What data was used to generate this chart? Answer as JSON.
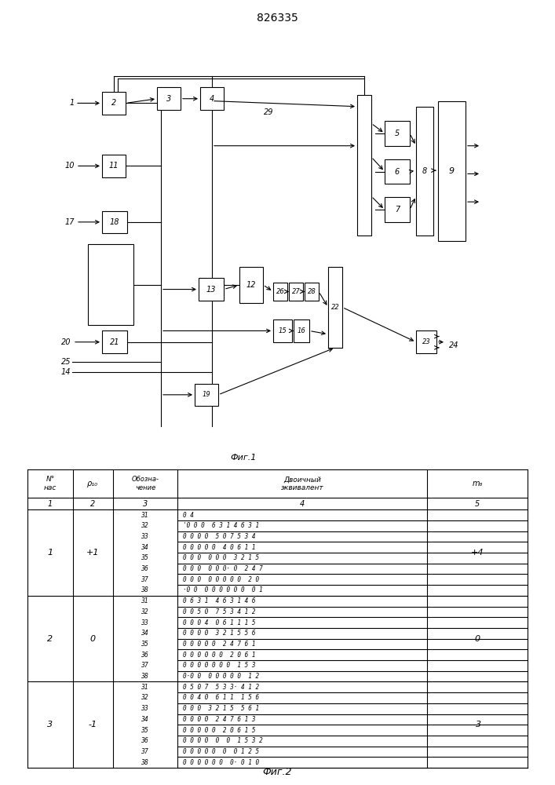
{
  "title": "826335",
  "fig1_label": "Фиг.1",
  "fig2_label": "Фиг.2",
  "sections": [
    {
      "nas": "1",
      "p10": "+1",
      "mb": "+4",
      "rows": [
        {
          "desig": "31",
          "equiv": "0 4"
        },
        {
          "desig": "32",
          "equiv": "'0 0 0  6 3 1 4 6 3 1"
        },
        {
          "desig": "33",
          "equiv": "0 0 0 0  5 0 7 5 3 4"
        },
        {
          "desig": "34",
          "equiv": "0 0 0 0 0  4 0 6 1 1"
        },
        {
          "desig": "35",
          "equiv": "0 0 0  0 0 0  3 2 1 5"
        },
        {
          "desig": "36",
          "equiv": "0 0 0  0 0 0· 0  2 4 7"
        },
        {
          "desig": "37",
          "equiv": "0 0 0  0 0 0 0 0  2 0"
        },
        {
          "desig": "38",
          "equiv": "·0 0  0 0 0 0 0 0  0 1"
        }
      ]
    },
    {
      "nas": "2",
      "p10": "0",
      "mb": "0",
      "rows": [
        {
          "desig": "31",
          "equiv": "0 6 3 1  4 6 3 1 4 6"
        },
        {
          "desig": "32",
          "equiv": "0 0 5 0  7 5 3 4 1 2"
        },
        {
          "desig": "33",
          "equiv": "0 0 0 4  0 6 1 1 1 5"
        },
        {
          "desig": "34",
          "equiv": "0 0 0 0  3 2 1 5 5 6"
        },
        {
          "desig": "35",
          "equiv": "0 0 0 0 0  2 4 7 6 1"
        },
        {
          "desig": "36",
          "equiv": "0 0 0 0 0 0  2 0 6 1"
        },
        {
          "desig": "37",
          "equiv": "0 0 0 0 0 0 0  1 5 3"
        },
        {
          "desig": "38",
          "equiv": "0·0 0  0 0 0 0 0  1 2"
        }
      ]
    },
    {
      "nas": "3",
      "p10": "-1",
      "mb": "-3",
      "rows": [
        {
          "desig": "31",
          "equiv": "0 5 0 7  5 3 3· 4 1 2"
        },
        {
          "desig": "32",
          "equiv": "0 0 4 0  6 1 1  1 5 6"
        },
        {
          "desig": "33",
          "equiv": "0 0 0  3 2 1 5  5 6 1"
        },
        {
          "desig": "34",
          "equiv": "0 0 0 0  2 4 7 6 1 3"
        },
        {
          "desig": "35",
          "equiv": "0 0 0 0 0  2 0 6 1 5"
        },
        {
          "desig": "36",
          "equiv": "0 0 0 0  0  0  1 5 3 2"
        },
        {
          "desig": "37",
          "equiv": "0 0 0 0 0  0  0 1 2 5"
        },
        {
          "desig": "38",
          "equiv": "0 0 0 0 0 0  0· 0 1 0"
        }
      ]
    }
  ]
}
